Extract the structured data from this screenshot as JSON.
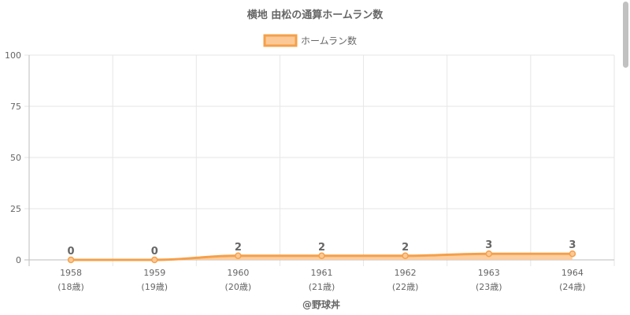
{
  "chart_data": {
    "type": "area",
    "title": "横地 由松の通算ホームラン数",
    "categories": [
      "1958",
      "1959",
      "1960",
      "1961",
      "1962",
      "1963",
      "1964"
    ],
    "sub_categories": [
      "(18歳)",
      "(19歳)",
      "(20歳)",
      "(21歳)",
      "(22歳)",
      "(23歳)",
      "(24歳)"
    ],
    "series": [
      {
        "name": "ホームラン数",
        "values": [
          0,
          0,
          2,
          2,
          2,
          3,
          3
        ]
      }
    ],
    "ylim": [
      0,
      100
    ],
    "yticks": [
      "0",
      "25",
      "50",
      "75",
      "100"
    ],
    "data_labels": [
      "0",
      "0",
      "2",
      "2",
      "2",
      "3",
      "3"
    ],
    "legend_position": "top",
    "grid": true,
    "colors": {
      "line": "#f5a04a",
      "fill": "#fcc996",
      "point": "#f5a04a"
    }
  },
  "footer": "@野球丼"
}
